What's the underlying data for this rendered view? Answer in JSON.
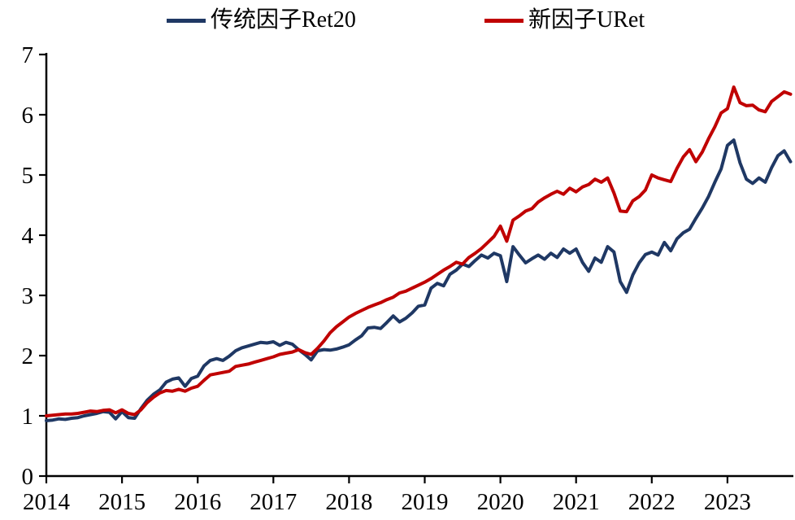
{
  "colors": {
    "series1": "#1F3864",
    "series2": "#C00000",
    "axis": "#000000",
    "background": "#FFFFFF"
  },
  "chart_data": {
    "type": "line",
    "title": "",
    "grid": false,
    "legend_position": "top-center",
    "x_axis": {
      "tick_labels": [
        "2014",
        "2015",
        "2016",
        "2017",
        "2018",
        "2019",
        "2020",
        "2021",
        "2022",
        "2023"
      ],
      "start_year": 2014,
      "points_per_year": 12,
      "frequency": "monthly"
    },
    "y_axis": {
      "ticks": [
        0,
        1,
        2,
        3,
        4,
        5,
        6,
        7
      ],
      "range": [
        0,
        7
      ]
    },
    "series": [
      {
        "name": "传统因子Ret20",
        "color": "#1F3864",
        "values": [
          0.92,
          0.93,
          0.95,
          0.94,
          0.96,
          0.97,
          1.0,
          1.02,
          1.04,
          1.07,
          1.06,
          0.95,
          1.07,
          0.97,
          0.96,
          1.12,
          1.26,
          1.36,
          1.43,
          1.56,
          1.61,
          1.63,
          1.49,
          1.62,
          1.66,
          1.83,
          1.92,
          1.95,
          1.92,
          1.99,
          2.08,
          2.13,
          2.16,
          2.19,
          2.22,
          2.21,
          2.23,
          2.17,
          2.22,
          2.19,
          2.1,
          2.02,
          1.93,
          2.08,
          2.1,
          2.09,
          2.11,
          2.14,
          2.18,
          2.26,
          2.33,
          2.46,
          2.47,
          2.45,
          2.55,
          2.66,
          2.56,
          2.62,
          2.71,
          2.82,
          2.84,
          3.12,
          3.2,
          3.16,
          3.35,
          3.42,
          3.52,
          3.48,
          3.58,
          3.67,
          3.62,
          3.7,
          3.66,
          3.23,
          3.81,
          3.67,
          3.54,
          3.61,
          3.67,
          3.6,
          3.7,
          3.63,
          3.77,
          3.7,
          3.77,
          3.55,
          3.4,
          3.62,
          3.55,
          3.81,
          3.72,
          3.23,
          3.05,
          3.34,
          3.54,
          3.68,
          3.72,
          3.67,
          3.88,
          3.74,
          3.94,
          4.04,
          4.1,
          4.28,
          4.45,
          4.64,
          4.88,
          5.1,
          5.49,
          5.58,
          5.2,
          4.93,
          4.86,
          4.95,
          4.88,
          5.12,
          5.32,
          5.4,
          5.22
        ]
      },
      {
        "name": "新因子URet",
        "color": "#C00000",
        "values": [
          1.0,
          1.01,
          1.02,
          1.03,
          1.03,
          1.04,
          1.06,
          1.08,
          1.07,
          1.09,
          1.1,
          1.05,
          1.1,
          1.04,
          1.02,
          1.1,
          1.22,
          1.31,
          1.38,
          1.42,
          1.41,
          1.44,
          1.41,
          1.46,
          1.49,
          1.59,
          1.68,
          1.7,
          1.72,
          1.74,
          1.82,
          1.84,
          1.86,
          1.89,
          1.92,
          1.95,
          1.98,
          2.02,
          2.04,
          2.06,
          2.1,
          2.05,
          2.02,
          2.12,
          2.24,
          2.38,
          2.48,
          2.56,
          2.64,
          2.7,
          2.75,
          2.8,
          2.84,
          2.88,
          2.93,
          2.97,
          3.04,
          3.07,
          3.12,
          3.17,
          3.22,
          3.28,
          3.35,
          3.42,
          3.48,
          3.55,
          3.52,
          3.63,
          3.7,
          3.78,
          3.88,
          3.98,
          4.15,
          3.9,
          4.25,
          4.32,
          4.4,
          4.44,
          4.55,
          4.62,
          4.68,
          4.73,
          4.68,
          4.78,
          4.72,
          4.8,
          4.84,
          4.93,
          4.88,
          4.95,
          4.7,
          4.4,
          4.39,
          4.57,
          4.64,
          4.75,
          5.0,
          4.95,
          4.92,
          4.89,
          5.11,
          5.3,
          5.42,
          5.22,
          5.38,
          5.6,
          5.8,
          6.03,
          6.1,
          6.46,
          6.2,
          6.15,
          6.16,
          6.08,
          6.05,
          6.22,
          6.3,
          6.38,
          6.34
        ]
      }
    ]
  }
}
